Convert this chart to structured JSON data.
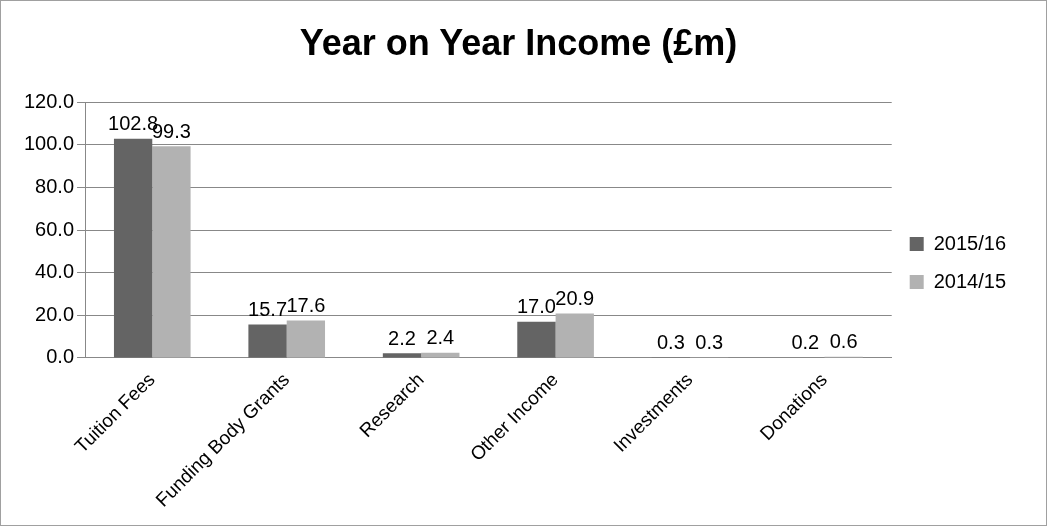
{
  "chart_data": {
    "type": "bar",
    "title": "Year on Year Income (£m)",
    "categories": [
      "Tuition Fees",
      "Funding Body Grants",
      "Research",
      "Other Income",
      "Investments",
      "Donations"
    ],
    "series": [
      {
        "name": "2015/16",
        "color": "#646464",
        "values": [
          102.8,
          15.7,
          2.2,
          17.0,
          0.3,
          0.2
        ],
        "value_labels": [
          "102.8",
          "15.7",
          "2.2",
          "17.0",
          "0.3",
          "0.2"
        ]
      },
      {
        "name": "2014/15",
        "color": "#b2b2b2",
        "values": [
          99.3,
          17.6,
          2.4,
          20.9,
          0.3,
          0.6
        ],
        "value_labels": [
          "99.3",
          "17.6",
          "2.4",
          "20.9",
          "0.3",
          "0.6"
        ]
      }
    ],
    "ylim": [
      0,
      120
    ],
    "yticks": [
      {
        "value": 0,
        "label": "0.0"
      },
      {
        "value": 20,
        "label": "20.0"
      },
      {
        "value": 40,
        "label": "40.0"
      },
      {
        "value": 60,
        "label": "60.0"
      },
      {
        "value": 80,
        "label": "80.0"
      },
      {
        "value": 100,
        "label": "100.0"
      },
      {
        "value": 120,
        "label": "120.0"
      }
    ],
    "grid": "y",
    "legend": "right"
  }
}
